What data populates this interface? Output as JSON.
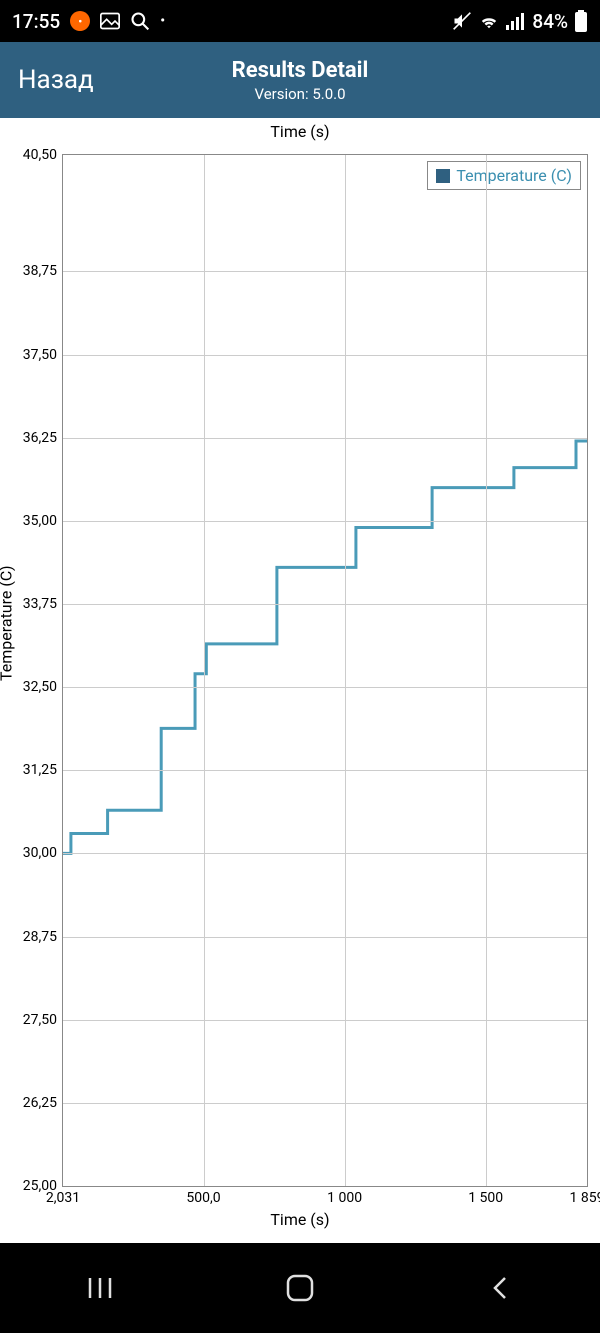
{
  "status_bar": {
    "time": "17:55",
    "battery_text": "84%",
    "icons": {
      "mi": "mi",
      "gallery": "gallery-icon",
      "search": "search-icon",
      "dot": "•",
      "mute": "mute-icon",
      "wifi": "wifi-icon",
      "signal": "signal-icon",
      "battery": "battery-icon"
    },
    "bg": "#000000",
    "fg": "#ffffff"
  },
  "app_bar": {
    "back_label": "Назад",
    "title": "Results Detail",
    "version": "Version: 5.0.0",
    "bg": "#2f6080",
    "fg": "#ffffff"
  },
  "chart": {
    "type": "step-line",
    "title_top": "Time (s)",
    "xlabel": "Time (s)",
    "ylabel": "Temperature (C)",
    "legend_label": "Temperature (C)",
    "legend_color": "#2f6080",
    "legend_text_color": "#3b8fb0",
    "line_color": "#4a9bb8",
    "line_width": 1.5,
    "background_color": "#ffffff",
    "grid_color": "#cccccc",
    "border_color": "#888888",
    "xlim": [
      2.031,
      1859
    ],
    "ylim": [
      25.0,
      40.5
    ],
    "ytick_step": 1.25,
    "ytick_labels": [
      "25,00",
      "26,25",
      "27,50",
      "28,75",
      "30,00",
      "31,25",
      "32,50",
      "33,75",
      "35,00",
      "36,25",
      "37,50",
      "38,75",
      "40,50"
    ],
    "ytick_values": [
      25.0,
      26.25,
      27.5,
      28.75,
      30.0,
      31.25,
      32.5,
      33.75,
      35.0,
      36.25,
      37.5,
      38.75,
      40.5
    ],
    "xtick_labels": [
      "2,031",
      "500,0",
      "1 000",
      "1 500",
      "1 859"
    ],
    "xtick_values": [
      2.031,
      500,
      1000,
      1500,
      1859
    ],
    "data": {
      "x": [
        2,
        30,
        30,
        160,
        160,
        350,
        350,
        470,
        470,
        510,
        510,
        760,
        760,
        1040,
        1040,
        1310,
        1310,
        1600,
        1600,
        1820,
        1820,
        1859
      ],
      "y": [
        30.0,
        30.0,
        30.3,
        30.3,
        30.65,
        30.65,
        31.88,
        31.88,
        32.7,
        32.7,
        33.15,
        33.15,
        34.3,
        34.3,
        34.9,
        34.9,
        35.5,
        35.5,
        35.8,
        35.8,
        36.2,
        36.2
      ]
    }
  },
  "nav_bar": {
    "recent": "recent-apps",
    "home": "home",
    "back": "back"
  }
}
